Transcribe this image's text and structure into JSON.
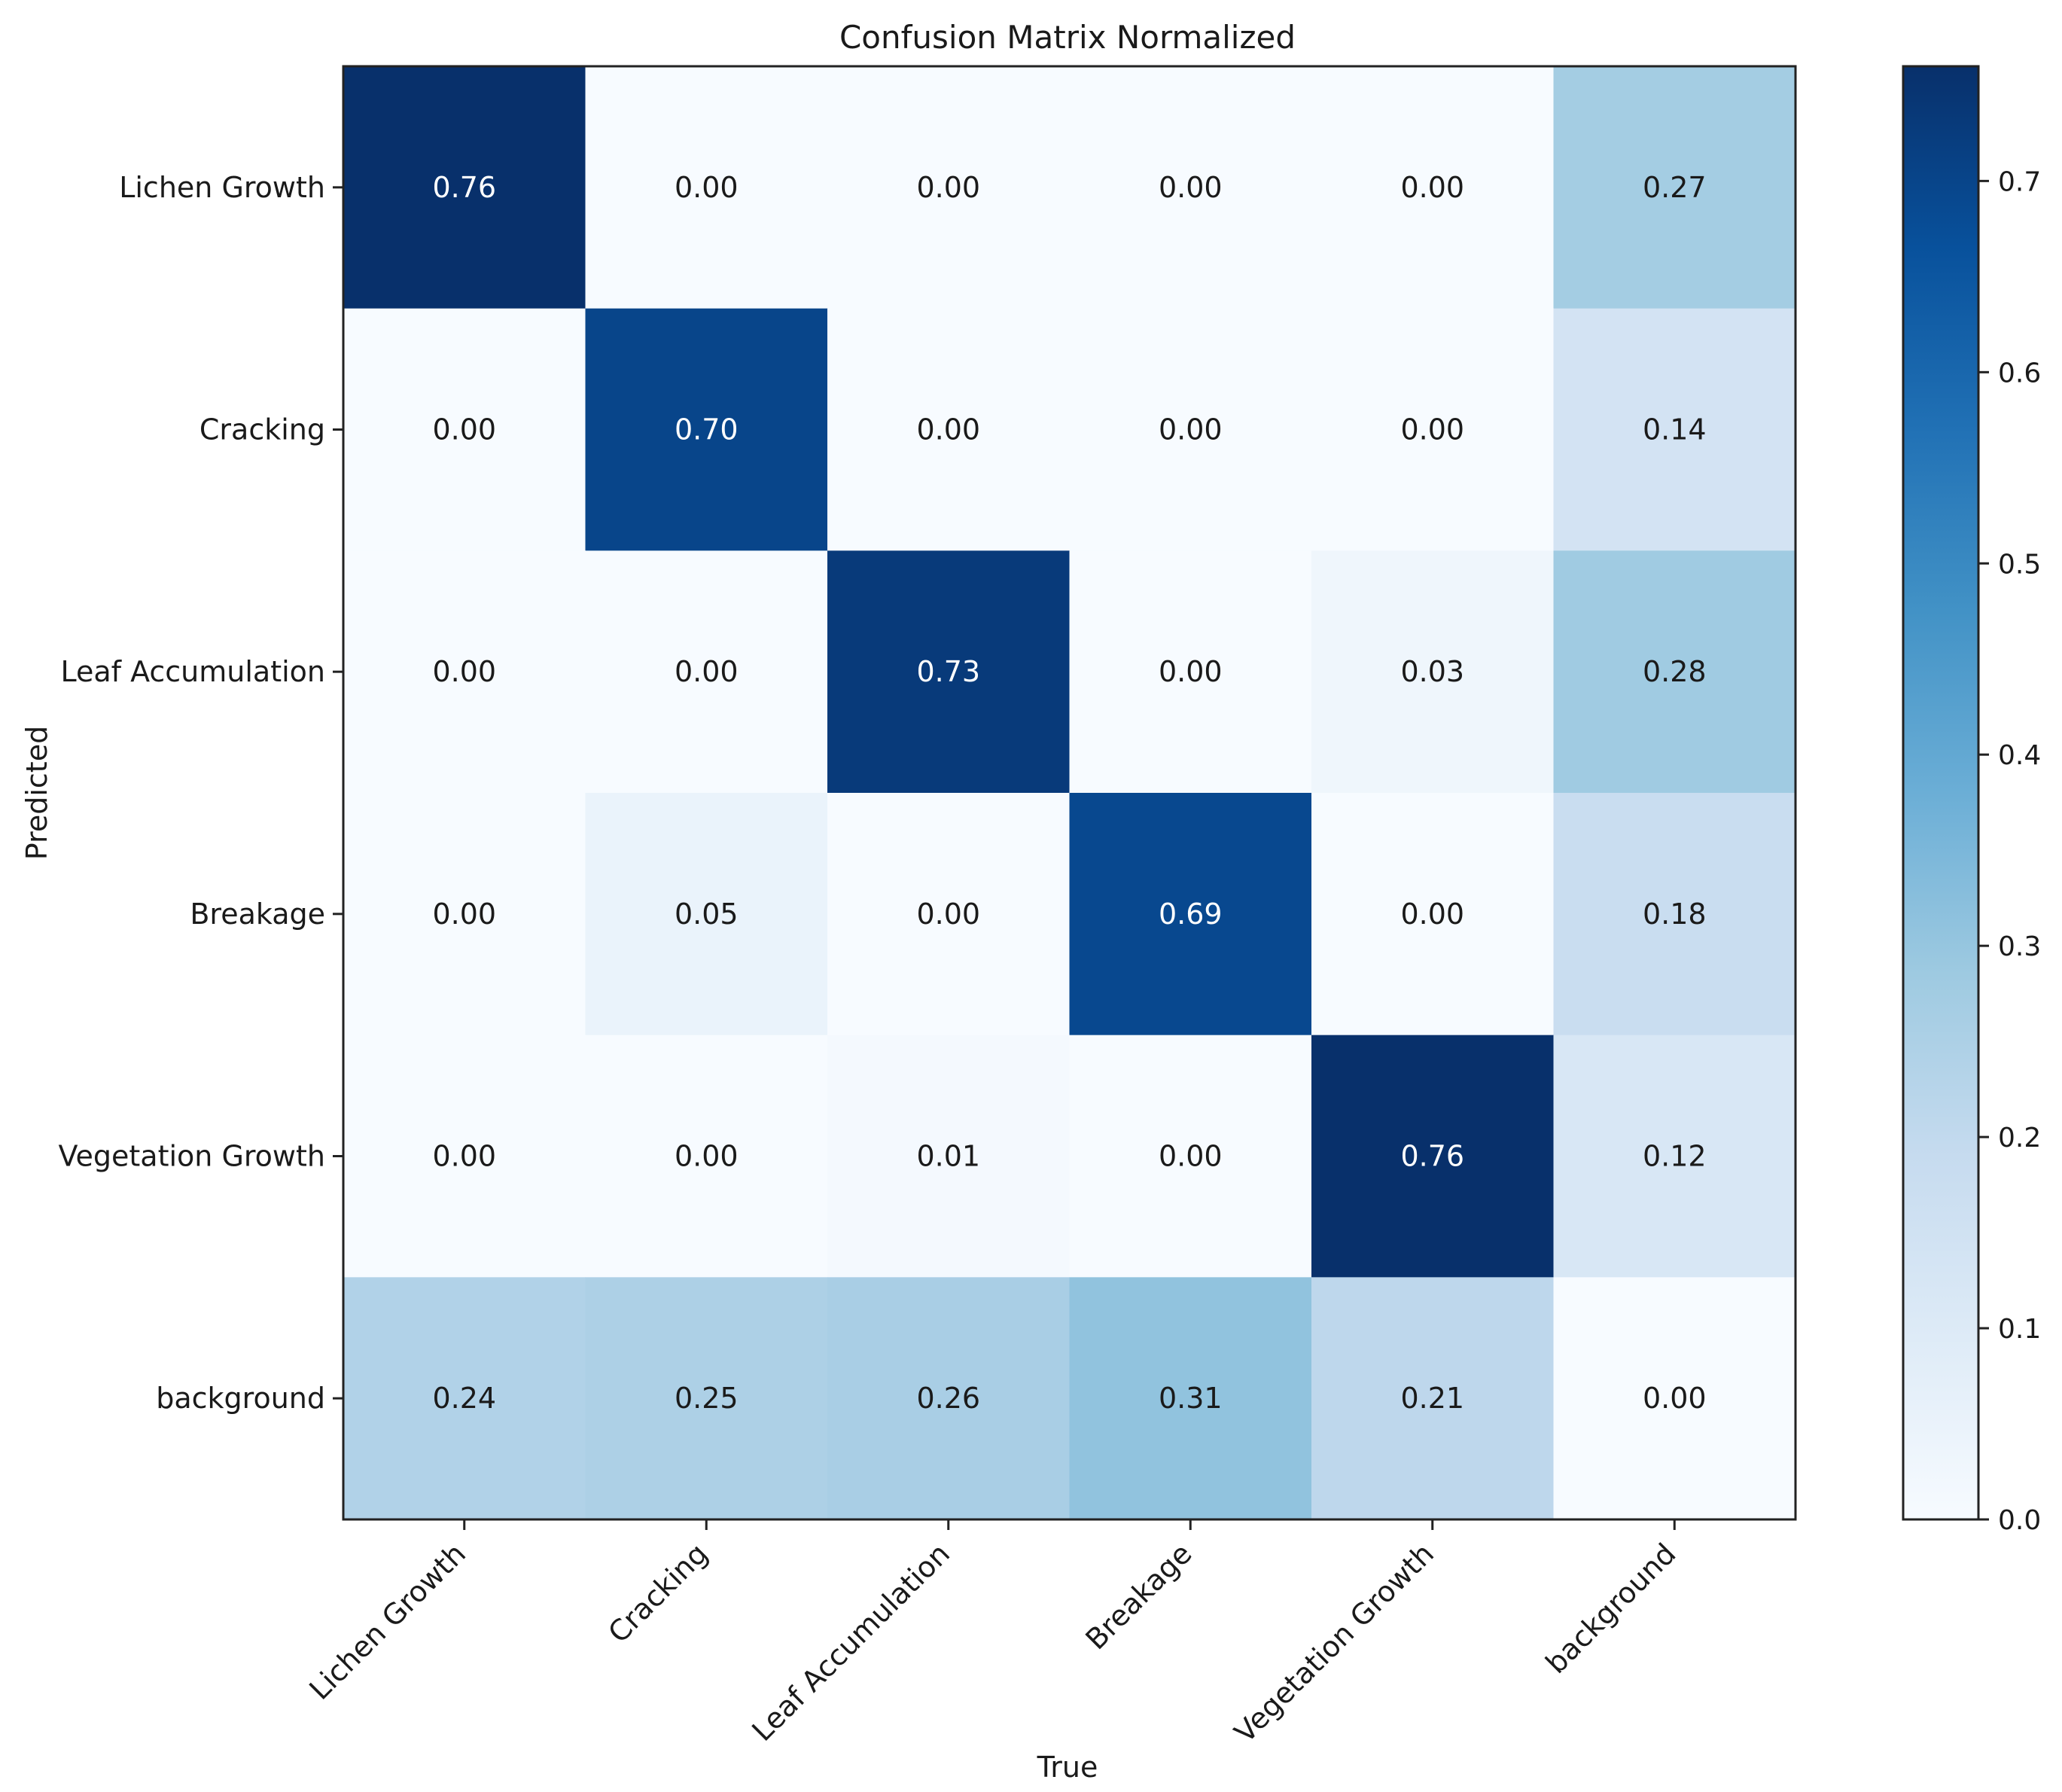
{
  "chart_data": {
    "type": "heatmap",
    "title": "Confusion Matrix Normalized",
    "xlabel": "True",
    "ylabel": "Predicted",
    "x_categories": [
      "Lichen Growth",
      "Cracking",
      "Leaf Accumulation",
      "Breakage",
      "Vegetation Growth",
      "background"
    ],
    "y_categories": [
      "Lichen Growth",
      "Cracking",
      "Leaf Accumulation",
      "Breakage",
      "Vegetation Growth",
      "background"
    ],
    "values": [
      [
        0.76,
        0.0,
        0.0,
        0.0,
        0.0,
        0.27
      ],
      [
        0.0,
        0.7,
        0.0,
        0.0,
        0.0,
        0.14
      ],
      [
        0.0,
        0.0,
        0.73,
        0.0,
        0.03,
        0.28
      ],
      [
        0.0,
        0.05,
        0.0,
        0.69,
        0.0,
        0.18
      ],
      [
        0.0,
        0.0,
        0.01,
        0.0,
        0.76,
        0.12
      ],
      [
        0.24,
        0.25,
        0.26,
        0.31,
        0.21,
        0.0
      ]
    ],
    "value_labels": [
      [
        "0.76",
        "0.00",
        "0.00",
        "0.00",
        "0.00",
        "0.27"
      ],
      [
        "0.00",
        "0.70",
        "0.00",
        "0.00",
        "0.00",
        "0.14"
      ],
      [
        "0.00",
        "0.00",
        "0.73",
        "0.00",
        "0.03",
        "0.28"
      ],
      [
        "0.00",
        "0.05",
        "0.00",
        "0.69",
        "0.00",
        "0.18"
      ],
      [
        "0.00",
        "0.00",
        "0.01",
        "0.00",
        "0.76",
        "0.12"
      ],
      [
        "0.24",
        "0.25",
        "0.26",
        "0.31",
        "0.21",
        "0.00"
      ]
    ],
    "colorbar": {
      "range": [
        0,
        0.76
      ],
      "ticks": [
        0.0,
        0.1,
        0.2,
        0.3,
        0.4,
        0.5,
        0.6,
        0.7
      ],
      "tick_labels": [
        "0.0",
        "0.1",
        "0.2",
        "0.3",
        "0.4",
        "0.5",
        "0.6",
        "0.7"
      ]
    },
    "colormap": "Blues",
    "colormap_stops": [
      "#f7fbff",
      "#deebf7",
      "#c6dbef",
      "#9ecae1",
      "#6baed6",
      "#4292c6",
      "#2171b5",
      "#08519c",
      "#08306b"
    ],
    "grid": false
  }
}
